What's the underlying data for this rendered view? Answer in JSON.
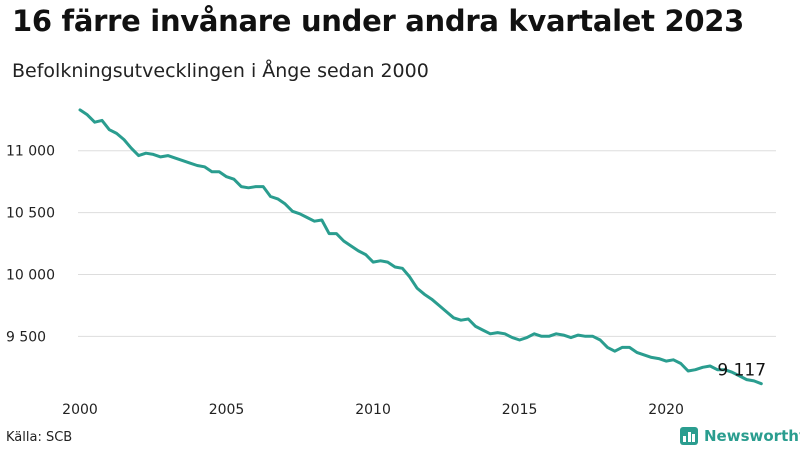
{
  "header": {
    "title": "16 färre invånare under andra kvartalet 2023",
    "subtitle": "Befolkningsutvecklingen i Ånge sedan 2000"
  },
  "footer": {
    "source": "Källa: SCB",
    "brand": "Newsworthy"
  },
  "colors": {
    "line": "#2a9d8f",
    "grid": "#dddddd",
    "brand": "#2a9d8f"
  },
  "icons": {
    "brand": "bar-chart-logo-icon"
  },
  "chart_data": {
    "type": "line",
    "ylim": [
      9050,
      11450
    ],
    "yticks": [
      9500,
      10000,
      10500,
      11000
    ],
    "ytick_labels": [
      "9 500",
      "10 000",
      "10 500",
      "11 000"
    ],
    "xlim": [
      2000.0,
      2023.75
    ],
    "xticks": [
      2000,
      2005,
      2010,
      2015,
      2020
    ],
    "xtick_labels": [
      "2000",
      "2005",
      "2010",
      "2015",
      "2020"
    ],
    "grid": true,
    "end_label": "9 117",
    "series": [
      {
        "x": [
          2000.0,
          2000.25,
          2000.5,
          2000.75,
          2001.0,
          2001.25,
          2001.5,
          2001.75,
          2002.0,
          2002.25,
          2002.5,
          2002.75,
          2003.0,
          2003.25,
          2003.5,
          2003.75,
          2004.0,
          2004.25,
          2004.5,
          2004.75,
          2005.0,
          2005.25,
          2005.5,
          2005.75,
          2006.0,
          2006.25,
          2006.5,
          2006.75,
          2007.0,
          2007.25,
          2007.5,
          2007.75,
          2008.0,
          2008.25,
          2008.5,
          2008.75,
          2009.0,
          2009.25,
          2009.5,
          2009.75,
          2010.0,
          2010.25,
          2010.5,
          2010.75,
          2011.0,
          2011.25,
          2011.5,
          2011.75,
          2012.0,
          2012.25,
          2012.5,
          2012.75,
          2013.0,
          2013.25,
          2013.5,
          2013.75,
          2014.0,
          2014.25,
          2014.5,
          2014.75,
          2015.0,
          2015.25,
          2015.5,
          2015.75,
          2016.0,
          2016.25,
          2016.5,
          2016.75,
          2017.0,
          2017.25,
          2017.5,
          2017.75,
          2018.0,
          2018.25,
          2018.5,
          2018.75,
          2019.0,
          2019.25,
          2019.5,
          2019.75,
          2020.0,
          2020.25,
          2020.5,
          2020.75,
          2021.0,
          2021.25,
          2021.5,
          2021.75,
          2022.0,
          2022.25,
          2022.5,
          2022.75,
          2023.0,
          2023.25
        ],
        "values": [
          11330,
          11290,
          11230,
          11245,
          11170,
          11140,
          11090,
          11020,
          10960,
          10980,
          10970,
          10950,
          10960,
          10940,
          10920,
          10900,
          10880,
          10870,
          10830,
          10830,
          10790,
          10770,
          10710,
          10700,
          10710,
          10710,
          10630,
          10610,
          10570,
          10510,
          10490,
          10460,
          10430,
          10440,
          10330,
          10330,
          10270,
          10230,
          10190,
          10160,
          10100,
          10110,
          10100,
          10060,
          10050,
          9980,
          9890,
          9840,
          9800,
          9750,
          9700,
          9650,
          9630,
          9640,
          9580,
          9550,
          9520,
          9530,
          9520,
          9490,
          9470,
          9490,
          9520,
          9500,
          9500,
          9520,
          9510,
          9490,
          9510,
          9500,
          9500,
          9470,
          9410,
          9380,
          9410,
          9410,
          9370,
          9350,
          9330,
          9320,
          9300,
          9310,
          9280,
          9220,
          9230,
          9250,
          9260,
          9230,
          9230,
          9210,
          9180,
          9150,
          9140,
          9117
        ]
      }
    ]
  }
}
